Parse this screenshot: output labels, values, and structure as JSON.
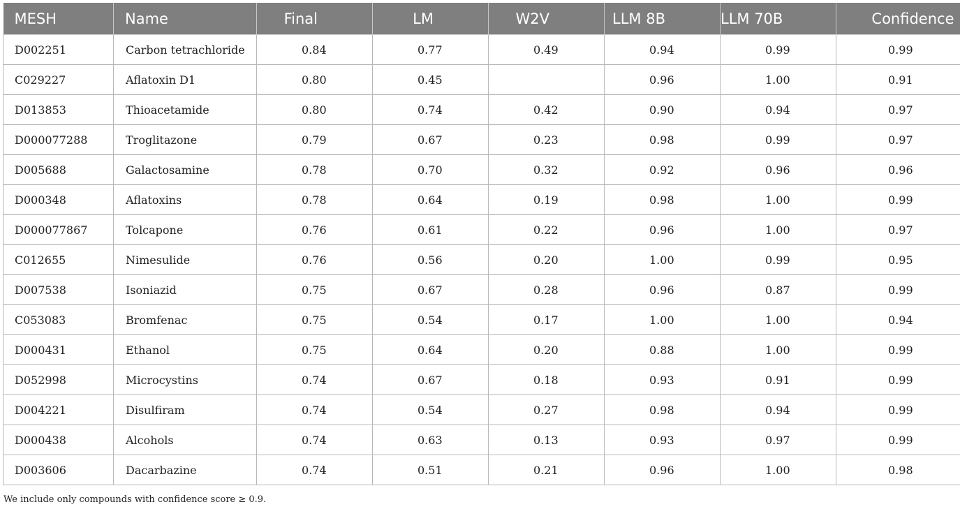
{
  "table": {
    "headers": [
      "MESH",
      "Name",
      "Final",
      "LM",
      "W2V",
      "LLM 8B",
      "LLM 70B",
      "Confidence"
    ],
    "rows": [
      [
        "D002251",
        "Carbon tetrachloride",
        "0.84",
        "0.77",
        "0.49",
        "0.94",
        "0.99",
        "0.99"
      ],
      [
        "C029227",
        "Aflatoxin D1",
        "0.80",
        "0.45",
        "",
        "0.96",
        "1.00",
        "0.91"
      ],
      [
        "D013853",
        "Thioacetamide",
        "0.80",
        "0.74",
        "0.42",
        "0.90",
        "0.94",
        "0.97"
      ],
      [
        "D000077288",
        "Troglitazone",
        "0.79",
        "0.67",
        "0.23",
        "0.98",
        "0.99",
        "0.97"
      ],
      [
        "D005688",
        "Galactosamine",
        "0.78",
        "0.70",
        "0.32",
        "0.92",
        "0.96",
        "0.96"
      ],
      [
        "D000348",
        "Aflatoxins",
        "0.78",
        "0.64",
        "0.19",
        "0.98",
        "1.00",
        "0.99"
      ],
      [
        "D000077867",
        "Tolcapone",
        "0.76",
        "0.61",
        "0.22",
        "0.96",
        "1.00",
        "0.97"
      ],
      [
        "C012655",
        "Nimesulide",
        "0.76",
        "0.56",
        "0.20",
        "1.00",
        "0.99",
        "0.95"
      ],
      [
        "D007538",
        "Isoniazid",
        "0.75",
        "0.67",
        "0.28",
        "0.96",
        "0.87",
        "0.99"
      ],
      [
        "C053083",
        "Bromfenac",
        "0.75",
        "0.54",
        "0.17",
        "1.00",
        "1.00",
        "0.94"
      ],
      [
        "D000431",
        "Ethanol",
        "0.75",
        "0.64",
        "0.20",
        "0.88",
        "1.00",
        "0.99"
      ],
      [
        "D052998",
        "Microcystins",
        "0.74",
        "0.67",
        "0.18",
        "0.93",
        "0.91",
        "0.99"
      ],
      [
        "D004221",
        "Disulfiram",
        "0.74",
        "0.54",
        "0.27",
        "0.98",
        "0.94",
        "0.99"
      ],
      [
        "D000438",
        "Alcohols",
        "0.74",
        "0.63",
        "0.13",
        "0.93",
        "0.97",
        "0.99"
      ],
      [
        "D003606",
        "Dacarbazine",
        "0.74",
        "0.51",
        "0.21",
        "0.96",
        "1.00",
        "0.98"
      ]
    ]
  },
  "footnote": "We include only compounds with confidence score ≥ 0.9.",
  "colors": {
    "header_background": "#7f7f7f",
    "header_text": "#ffffff",
    "grid": "#b8b8b8"
  }
}
